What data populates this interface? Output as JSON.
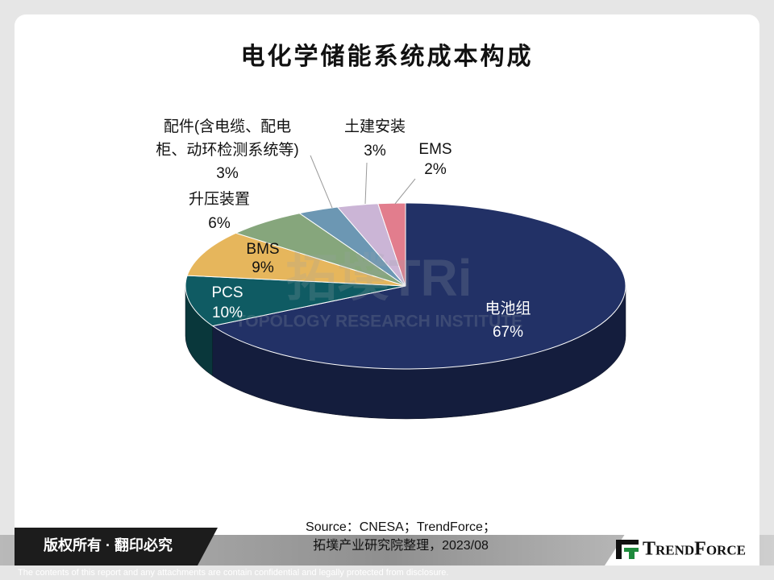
{
  "chart_data": {
    "type": "pie",
    "title": "电化学储能系统成本构成",
    "categories": [
      "电池组",
      "PCS",
      "BMS",
      "升压装置",
      "配件(含电缆、配电柜、动环检测系统等)",
      "土建安装",
      "EMS"
    ],
    "values": [
      67,
      10,
      9,
      6,
      3,
      3,
      2
    ],
    "value_labels": [
      "67%",
      "10%",
      "9%",
      "6%",
      "3%",
      "3%",
      "2%"
    ],
    "colors": [
      "#223166",
      "#0f5b63",
      "#e6b65c",
      "#86a67c",
      "#6c97b3",
      "#cbb5d6",
      "#e27d8d"
    ]
  },
  "watermark": {
    "mark": "拓墣TRi",
    "name": "TOPOLOGY RESEARCH INSTITUTE"
  },
  "source": [
    "Source：CNESA；TrendForce；",
    "拓墣产业研究院整理，2023/08"
  ],
  "footer": {
    "copyright": "版权所有 · 翻印必究",
    "logo": "TrendForce",
    "disclaimer": "The contents of this report and any attachments are contain confidential and legally protected from disclosure."
  }
}
